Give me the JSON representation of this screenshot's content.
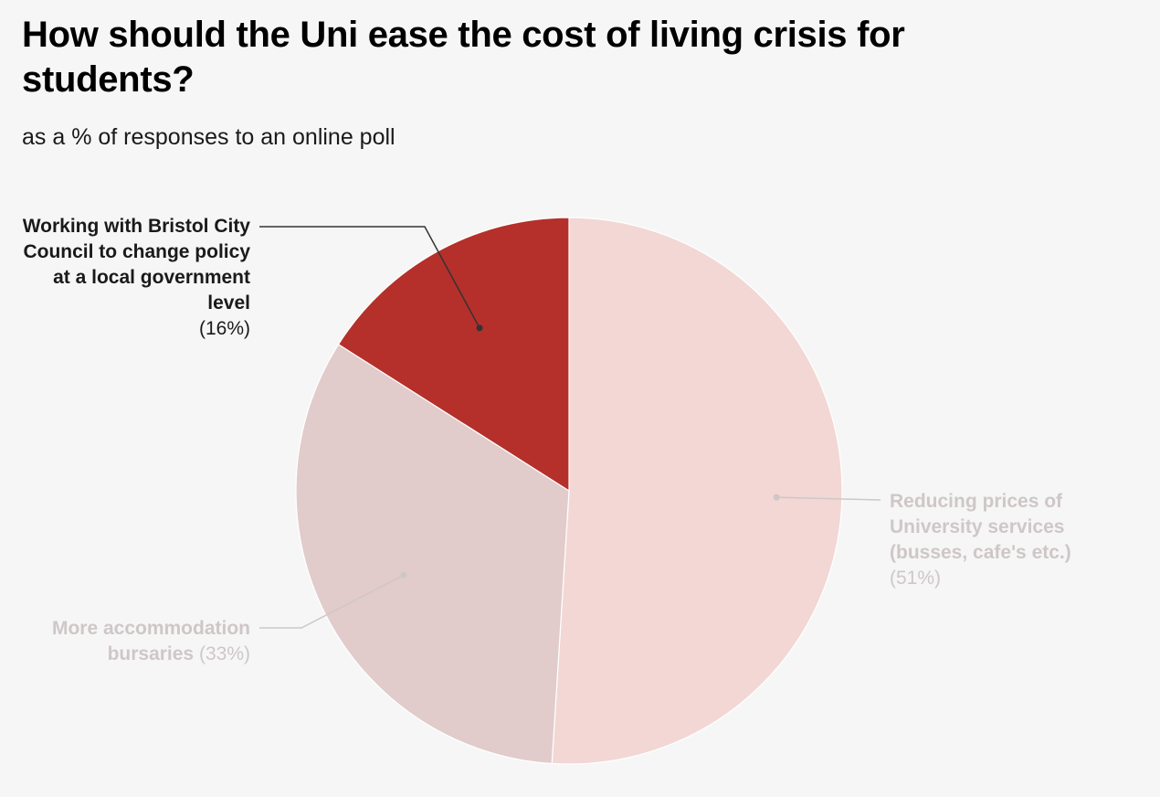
{
  "chart_data": {
    "type": "pie",
    "title": "How should the Uni ease the cost of living crisis for students?",
    "subtitle": "as a % of responses to an online poll",
    "slices": [
      {
        "label": "Reducing prices of University services (busses, cafe's etc.)",
        "percent_text": "(51%)",
        "value": 51,
        "color": "#f2d7d5",
        "label_color": "#cfc7c7"
      },
      {
        "label": "More accommodation bursaries",
        "percent_text": "(33%)",
        "value": 33,
        "color": "#e1cbcb",
        "label_color": "#cfc7c7"
      },
      {
        "label": "Working with Bristol City Council to change policy at a local government level",
        "percent_text": "(16%)",
        "value": 16,
        "color": "#b5302a",
        "label_color": "#1a1a1a"
      }
    ],
    "start": "12 o'clock",
    "direction": "clockwise",
    "legend": "none"
  }
}
